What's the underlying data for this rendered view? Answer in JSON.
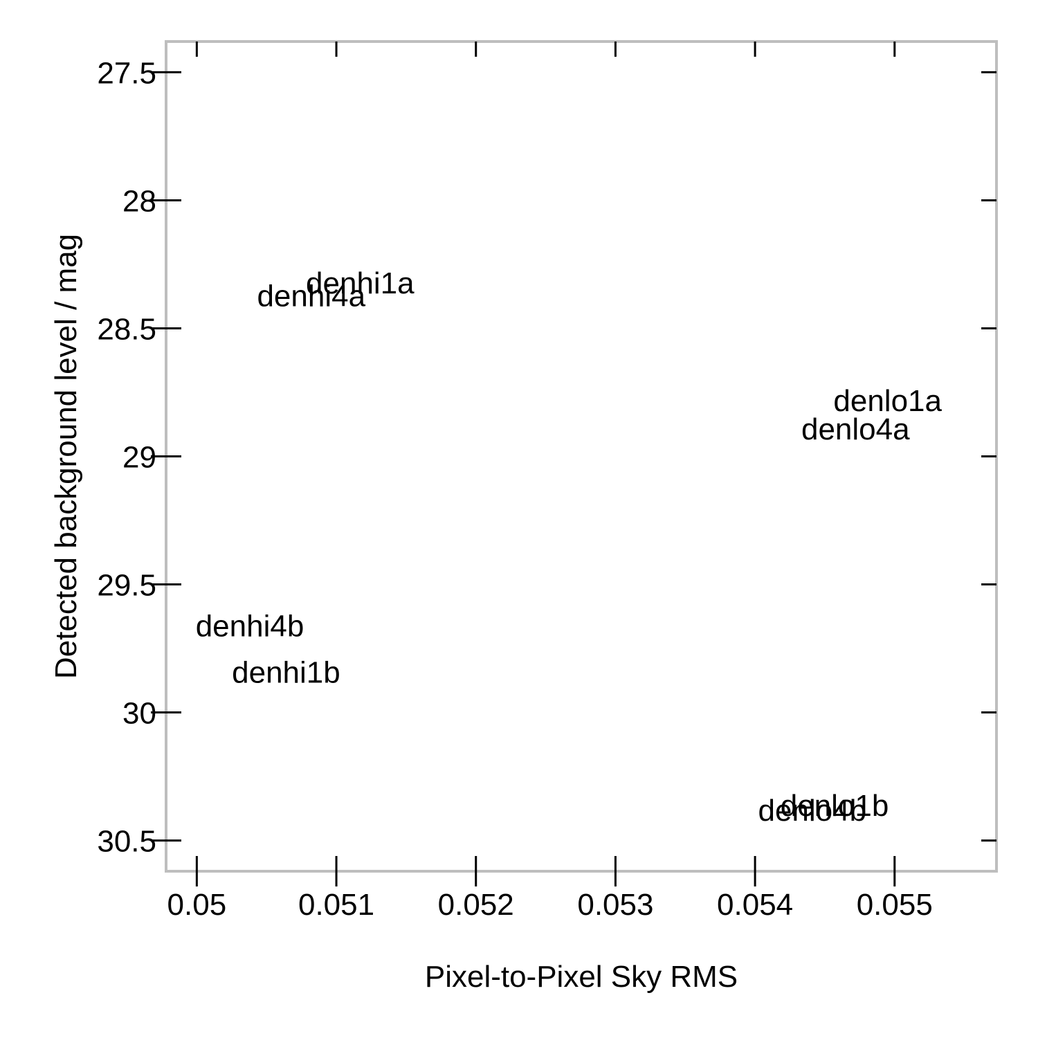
{
  "chart_data": {
    "type": "scatter",
    "title": "",
    "xlabel": "Pixel-to-Pixel Sky RMS",
    "ylabel": "Detected background level / mag",
    "xlim": [
      0.04978,
      0.05573
    ],
    "ylim": [
      27.38,
      30.62
    ],
    "y_inverted": true,
    "x_ticks": [
      0.05,
      0.051,
      0.052,
      0.053,
      0.054,
      0.055
    ],
    "x_tick_labels": [
      "0.05",
      "0.051",
      "0.052",
      "0.053",
      "0.054",
      "0.055"
    ],
    "y_ticks": [
      27.5,
      28,
      28.5,
      29,
      29.5,
      30,
      30.5
    ],
    "y_tick_labels": [
      "27.5",
      "28",
      "28.5",
      "29",
      "29.5",
      "30",
      "30.5"
    ],
    "grid": false,
    "legend": "none",
    "marker": "text-label",
    "points": [
      {
        "label": "denhi1a",
        "x": 0.05117,
        "y": 28.32
      },
      {
        "label": "denhi4a",
        "x": 0.05082,
        "y": 28.37
      },
      {
        "label": "denlo1a",
        "x": 0.05495,
        "y": 28.78
      },
      {
        "label": "denlo4a",
        "x": 0.05472,
        "y": 28.89
      },
      {
        "label": "denhi4b",
        "x": 0.05038,
        "y": 29.66
      },
      {
        "label": "denhi1b",
        "x": 0.05064,
        "y": 29.84
      },
      {
        "label": "denlo1b",
        "x": 0.05457,
        "y": 30.36
      },
      {
        "label": "denlo4b",
        "x": 0.05441,
        "y": 30.38
      }
    ],
    "colors": {
      "frame": "#bebebe",
      "tick": "#000000",
      "text": "#000000"
    }
  }
}
